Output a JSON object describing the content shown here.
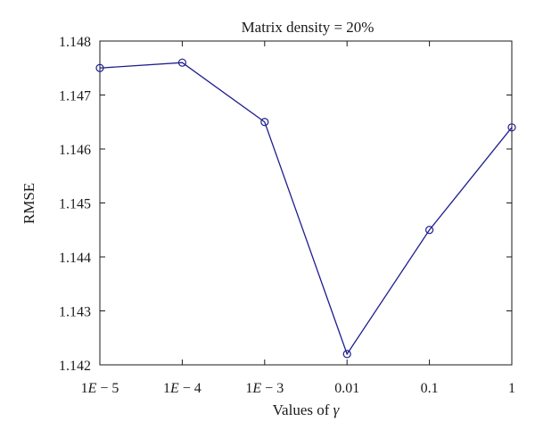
{
  "chart_data": {
    "type": "line",
    "title": "Matrix density = 20%",
    "xlabel": "Values of γ",
    "ylabel": "RMSE",
    "categories": [
      "1E − 5",
      "1E − 4",
      "1E − 3",
      "0.01",
      "0.1",
      "1"
    ],
    "series": [
      {
        "values": [
          1.1475,
          1.1476,
          1.1465,
          1.1422,
          1.1445,
          1.1464
        ]
      }
    ],
    "ylim": [
      1.142,
      1.148
    ],
    "yticks": [
      "1.142",
      "1.143",
      "1.144",
      "1.145",
      "1.146",
      "1.147",
      "1.148"
    ],
    "grid": false,
    "marker": "circle",
    "line_color": "#1f1f8f"
  }
}
